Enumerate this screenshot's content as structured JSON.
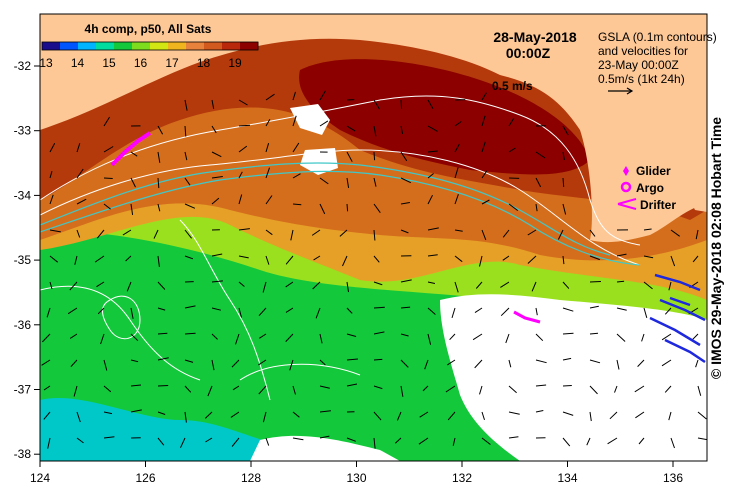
{
  "legend_box": {
    "title": "4h comp, p50, All Sats",
    "ticks": [
      "13",
      "14",
      "15",
      "16",
      "17",
      "18",
      "19"
    ],
    "colors": [
      "#1a0d8c",
      "#0055ff",
      "#00b4ff",
      "#00dca0",
      "#14c83c",
      "#7ddc1e",
      "#d2e614",
      "#f0b41e",
      "#e6823c",
      "#d25a1e",
      "#b9280a",
      "#8c0000"
    ]
  },
  "date": {
    "date": "28-May-2018",
    "time": "00:00Z"
  },
  "gsla_note": {
    "lines": [
      "GSLA (0.1m contours)",
      "and velocities for",
      "23-May 00:00Z",
      "0.5m/s (1kt 24h)"
    ]
  },
  "scale_label": "0.5 m/s",
  "platform_legend": [
    {
      "label": "Glider",
      "color": "#ff00ff"
    },
    {
      "label": "Argo",
      "color": "#ff00ff"
    },
    {
      "label": "Drifter",
      "color": "#ff00ff"
    }
  ],
  "copyright": "© IMOS 29-May-2018 02:08 Hobart Time",
  "axes": {
    "x_ticks": [
      "124",
      "126",
      "128",
      "130",
      "132",
      "134",
      "136"
    ],
    "y_ticks": [
      "-32",
      "-33",
      "-34",
      "-35",
      "-36",
      "-37",
      "-38"
    ]
  },
  "colors": {
    "land": "#fdc896",
    "no_data": "#ffffff",
    "warm_core": "#8c0000",
    "contour": "#ffffff",
    "cyan_contour": "#40c8c8",
    "argo_track": "#1e28dc",
    "glider_track": "#ff00ff"
  }
}
